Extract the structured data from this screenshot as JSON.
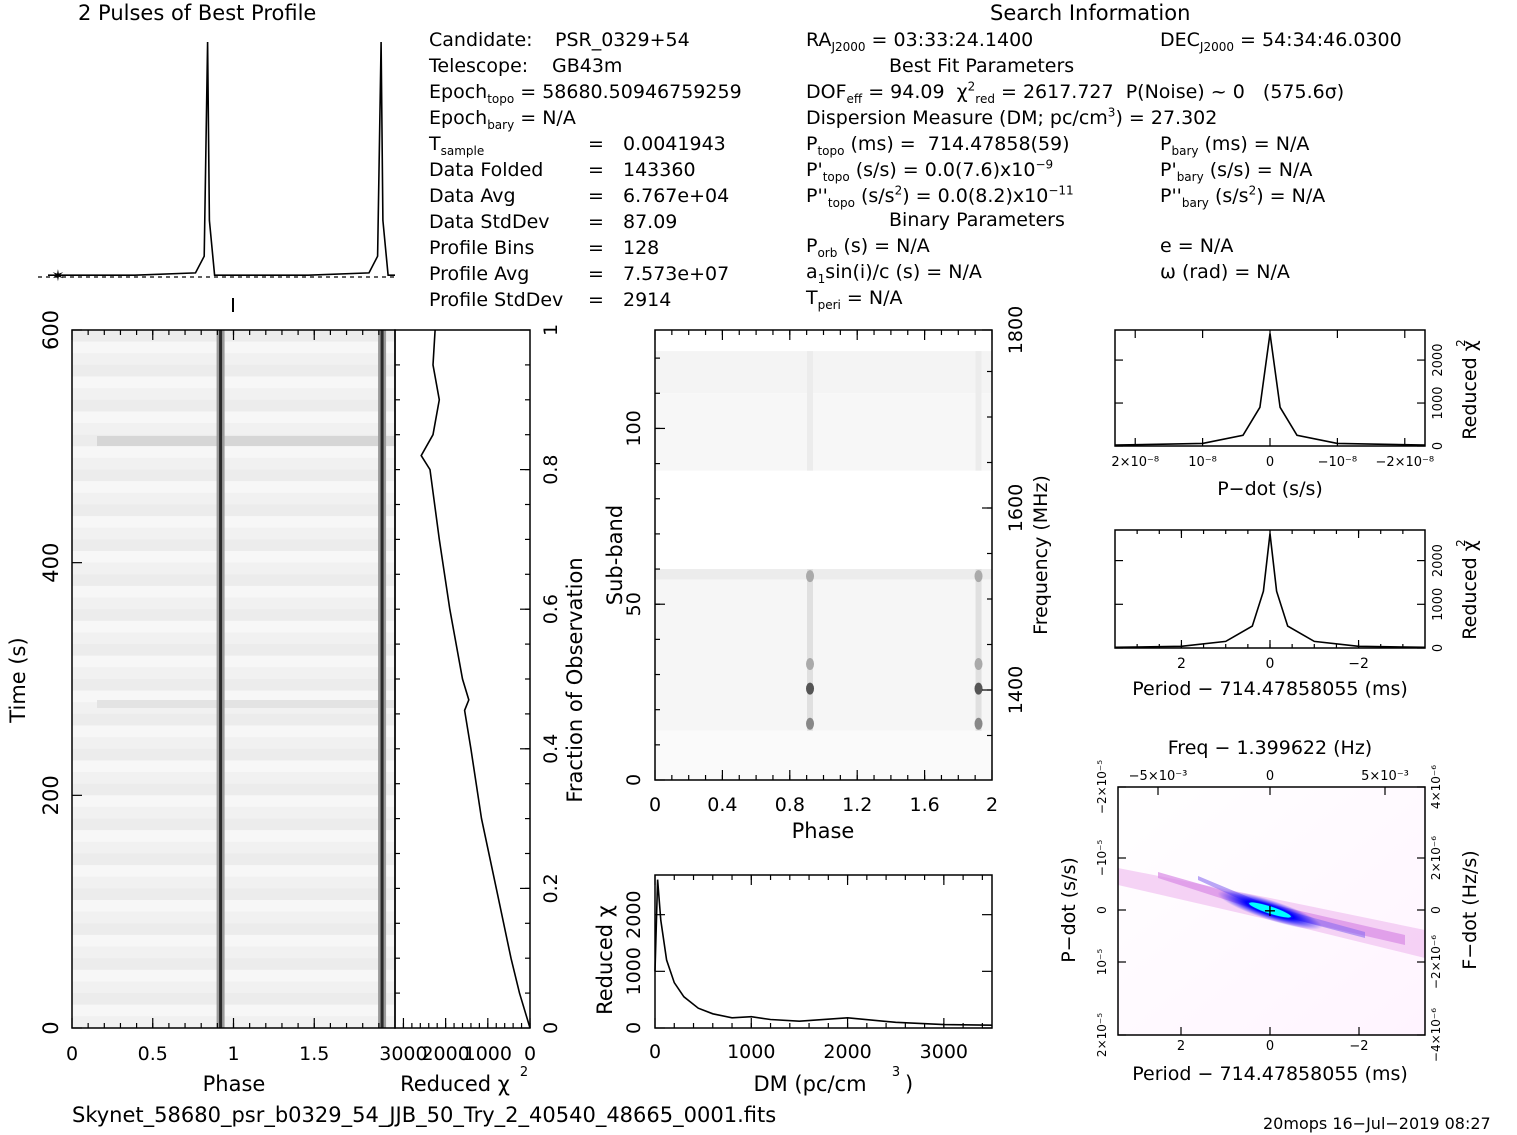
{
  "title_profile": "2 Pulses of Best Profile",
  "title_search": "Search Information",
  "candidate": {
    "label": "Candidate:",
    "value": "PSR_0329+54"
  },
  "telescope": {
    "label": "Telescope:",
    "value": "GB43m"
  },
  "epoch_topo": "58680.50946759259",
  "epoch_bary": "N/A",
  "stats": [
    {
      "label": "T",
      "sub": "sample",
      "value": "0.0041943"
    },
    {
      "label": "Data Folded",
      "sub": "",
      "value": "143360"
    },
    {
      "label": "Data Avg",
      "sub": "",
      "value": "6.767e+04"
    },
    {
      "label": "Data StdDev",
      "sub": "",
      "value": "87.09"
    },
    {
      "label": "Profile Bins",
      "sub": "",
      "value": "128"
    },
    {
      "label": "Profile Avg",
      "sub": "",
      "value": "7.573e+07"
    },
    {
      "label": "Profile StdDev",
      "sub": "",
      "value": "2914"
    }
  ],
  "ra": "03:33:24.1400",
  "dec": "54:34:46.0300",
  "best_fit_title": "Best Fit Parameters",
  "dof": "94.09",
  "chi2": "2617.727",
  "pnoise": "P(Noise) ~ 0",
  "sigma": "(575.6σ)",
  "dm_text": "Dispersion Measure (DM; pc/cm",
  "dm_value": "27.302",
  "p_topo": "714.47858(59)",
  "pd_topo": "0.0(7.6)x10",
  "pd_topo_exp": "−9",
  "pdd_topo": "0.0(8.2)x10",
  "pdd_topo_exp": "−11",
  "p_bary": "N/A",
  "pd_bary": "N/A",
  "pdd_bary": "N/A",
  "binary_title": "Binary Parameters",
  "p_orb": "N/A",
  "a1sini": "N/A",
  "t_peri": "N/A",
  "ecc": "N/A",
  "omega": "N/A",
  "filename": "Skynet_58680_psr_b0329_54_JJB_50_Try_2_40540_48665_0001.fits",
  "footer": "20mops  16−Jul−2019 08:27",
  "colors": {
    "ink": "#000000",
    "cmap_low": "#ffffff",
    "cmap_mid": "#ff00ff",
    "cmap_high": "#0000ff",
    "cmap_peak": "#00ffff"
  },
  "chart_data": [
    {
      "type": "line",
      "id": "profile",
      "title": "2 Pulses of Best Profile",
      "x": [
        0.0,
        0.5,
        0.85,
        0.9,
        0.92,
        0.93,
        0.96,
        1.0,
        1.5,
        1.85,
        1.9,
        1.92,
        1.93,
        1.96,
        2.0
      ],
      "y": [
        0.02,
        0.02,
        0.03,
        0.1,
        1.0,
        0.25,
        0.02,
        0.02,
        0.02,
        0.03,
        0.1,
        1.0,
        0.25,
        0.02,
        0.02
      ],
      "xlim": [
        0,
        2
      ],
      "note": "dashed line marks profile average"
    },
    {
      "type": "heatmap",
      "id": "time-phase",
      "xlabel": "Phase",
      "ylabel": "Time (s)",
      "xlim": [
        0,
        2
      ],
      "ylim": [
        0,
        600
      ],
      "x_ticks": [
        "0",
        "0.5",
        "1",
        "1.5"
      ],
      "y_ticks": [
        "0",
        "200",
        "400",
        "600"
      ],
      "pulse_phases": [
        0.92,
        1.92
      ]
    },
    {
      "type": "line",
      "id": "time-chi2",
      "xlabel": "Reduced χ",
      "ylabel": "Fraction of Observation",
      "x_ticks": [
        "3000",
        "2000",
        "1000",
        "0"
      ],
      "y_ticks": [
        "0",
        "0.2",
        "0.4",
        "0.6",
        "0.8",
        "1"
      ],
      "xlim": [
        3200,
        0
      ],
      "ylim": [
        0,
        1
      ],
      "y": [
        0.0,
        0.05,
        0.1,
        0.2,
        0.3,
        0.4,
        0.455,
        0.47,
        0.5,
        0.6,
        0.7,
        0.8,
        0.82,
        0.85,
        0.9,
        0.95,
        1.0
      ],
      "x": [
        0,
        250,
        450,
        800,
        1150,
        1400,
        1550,
        1450,
        1600,
        1900,
        2150,
        2370,
        2580,
        2300,
        2150,
        2300,
        2250
      ]
    },
    {
      "type": "heatmap",
      "id": "subband-phase",
      "xlabel": "Phase",
      "ylabel": "Sub-band",
      "y2label": "Frequency (MHz)",
      "xlim": [
        0,
        2
      ],
      "ylim": [
        0,
        128
      ],
      "x_ticks": [
        "0",
        "0.4",
        "0.8",
        "1.2",
        "1.6",
        "2"
      ],
      "y_ticks": [
        "0",
        "50",
        "100"
      ],
      "y2_ticks": [
        "1400",
        "1600",
        "1800"
      ]
    },
    {
      "type": "line",
      "id": "dm-chi2",
      "xlabel": "DM (pc/cm",
      "ylabel": "Reduced χ",
      "xlim": [
        0,
        3500
      ],
      "ylim": [
        0,
        2700
      ],
      "x_ticks": [
        "0",
        "1000",
        "2000",
        "3000"
      ],
      "y_ticks": [
        "0",
        "1000",
        "2000"
      ],
      "x": [
        0,
        27,
        60,
        120,
        200,
        300,
        450,
        600,
        800,
        1000,
        1200,
        1500,
        2000,
        2500,
        3000,
        3500
      ],
      "y": [
        1000,
        2618,
        1900,
        1200,
        800,
        550,
        350,
        250,
        180,
        200,
        150,
        120,
        180,
        100,
        60,
        50
      ]
    },
    {
      "type": "line",
      "id": "pdot-chi2",
      "xlabel": "P−dot (s/s)",
      "ylabel": "Reduced χ",
      "x_ticks": [
        "2×10⁻⁸",
        "10⁻⁸",
        "0",
        "−10⁻⁸",
        "−2×10⁻⁸"
      ],
      "y_ticks": [
        "0",
        "1000",
        "2000"
      ],
      "xlim": [
        2.3e-08,
        -2.3e-08
      ],
      "ylim": [
        0,
        2700
      ],
      "x": [
        2.3e-08,
        1e-08,
        4e-09,
        1.5e-09,
        0,
        -1.5e-09,
        -4e-09,
        -1e-08,
        -2.3e-08
      ],
      "y": [
        20,
        60,
        250,
        900,
        2618,
        900,
        250,
        60,
        20
      ]
    },
    {
      "type": "line",
      "id": "period-chi2",
      "xlabel": "Period − 714.47858055 (ms)",
      "ylabel": "Reduced χ",
      "x_ticks": [
        "2",
        "0",
        "−2"
      ],
      "y_ticks": [
        "0",
        "1000",
        "2000"
      ],
      "xlim": [
        3.5,
        -3.5
      ],
      "ylim": [
        0,
        2700
      ],
      "x": [
        3.5,
        2,
        1,
        0.4,
        0.15,
        0,
        -0.15,
        -0.4,
        -1,
        -2,
        -3.5
      ],
      "y": [
        15,
        40,
        150,
        500,
        1300,
        2618,
        1300,
        500,
        150,
        40,
        15
      ]
    },
    {
      "type": "heatmap",
      "id": "p-pdot",
      "title": "Freq − 1.399622 (Hz)",
      "xlabel": "Period − 714.47858055 (ms)",
      "ylabel": "P−dot (s/s)",
      "y2label": "F−dot (Hz/s)",
      "x_ticks": [
        "2",
        "0",
        "−2"
      ],
      "x2_ticks": [
        "−5×10⁻³",
        "0",
        "5×10⁻³"
      ],
      "y_ticks": [
        "2×10⁻⁵",
        "10⁻⁵",
        "0",
        "−10⁻⁵",
        "−2×10⁻⁵"
      ],
      "y2_ticks": [
        "−4×10⁻⁶",
        "−2×10⁻⁶",
        "0",
        "2×10⁻⁶",
        "4×10⁻⁶"
      ]
    }
  ]
}
